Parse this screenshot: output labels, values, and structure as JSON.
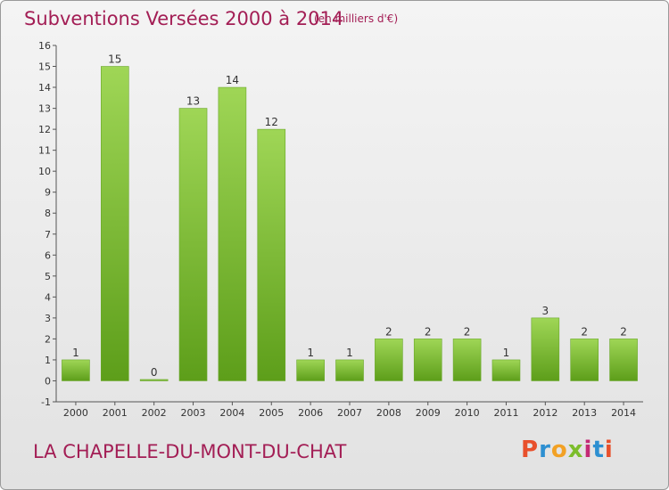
{
  "chart_data": {
    "type": "bar",
    "title": "Subventions Versées 2000 à 2014",
    "subtitle": "(en milliers d'€)",
    "categories": [
      "2000",
      "2001",
      "2002",
      "2003",
      "2004",
      "2005",
      "2006",
      "2007",
      "2008",
      "2009",
      "2010",
      "2011",
      "2012",
      "2013",
      "2014"
    ],
    "values": [
      1,
      15,
      0,
      13,
      14,
      12,
      1,
      1,
      2,
      2,
      2,
      1,
      3,
      2,
      2
    ],
    "ylim": [
      -1,
      16
    ],
    "yticks": [
      -1,
      0,
      1,
      2,
      3,
      4,
      5,
      6,
      7,
      8,
      9,
      10,
      11,
      12,
      13,
      14,
      15,
      16
    ],
    "grid": false,
    "xlabel": "",
    "ylabel": ""
  },
  "footer": {
    "commune": "LA CHAPELLE-DU-MONT-DU-CHAT",
    "logo": "Proxiti"
  },
  "colors": {
    "bar_top": "#9fd656",
    "bar_bottom": "#5d9e1a",
    "title": "#a31e55",
    "logo_letters": [
      "#e8502c",
      "#2d8fd1",
      "#f2a124",
      "#7cbd2b",
      "#c42a75",
      "#2d8fd1",
      "#e8502c"
    ]
  }
}
